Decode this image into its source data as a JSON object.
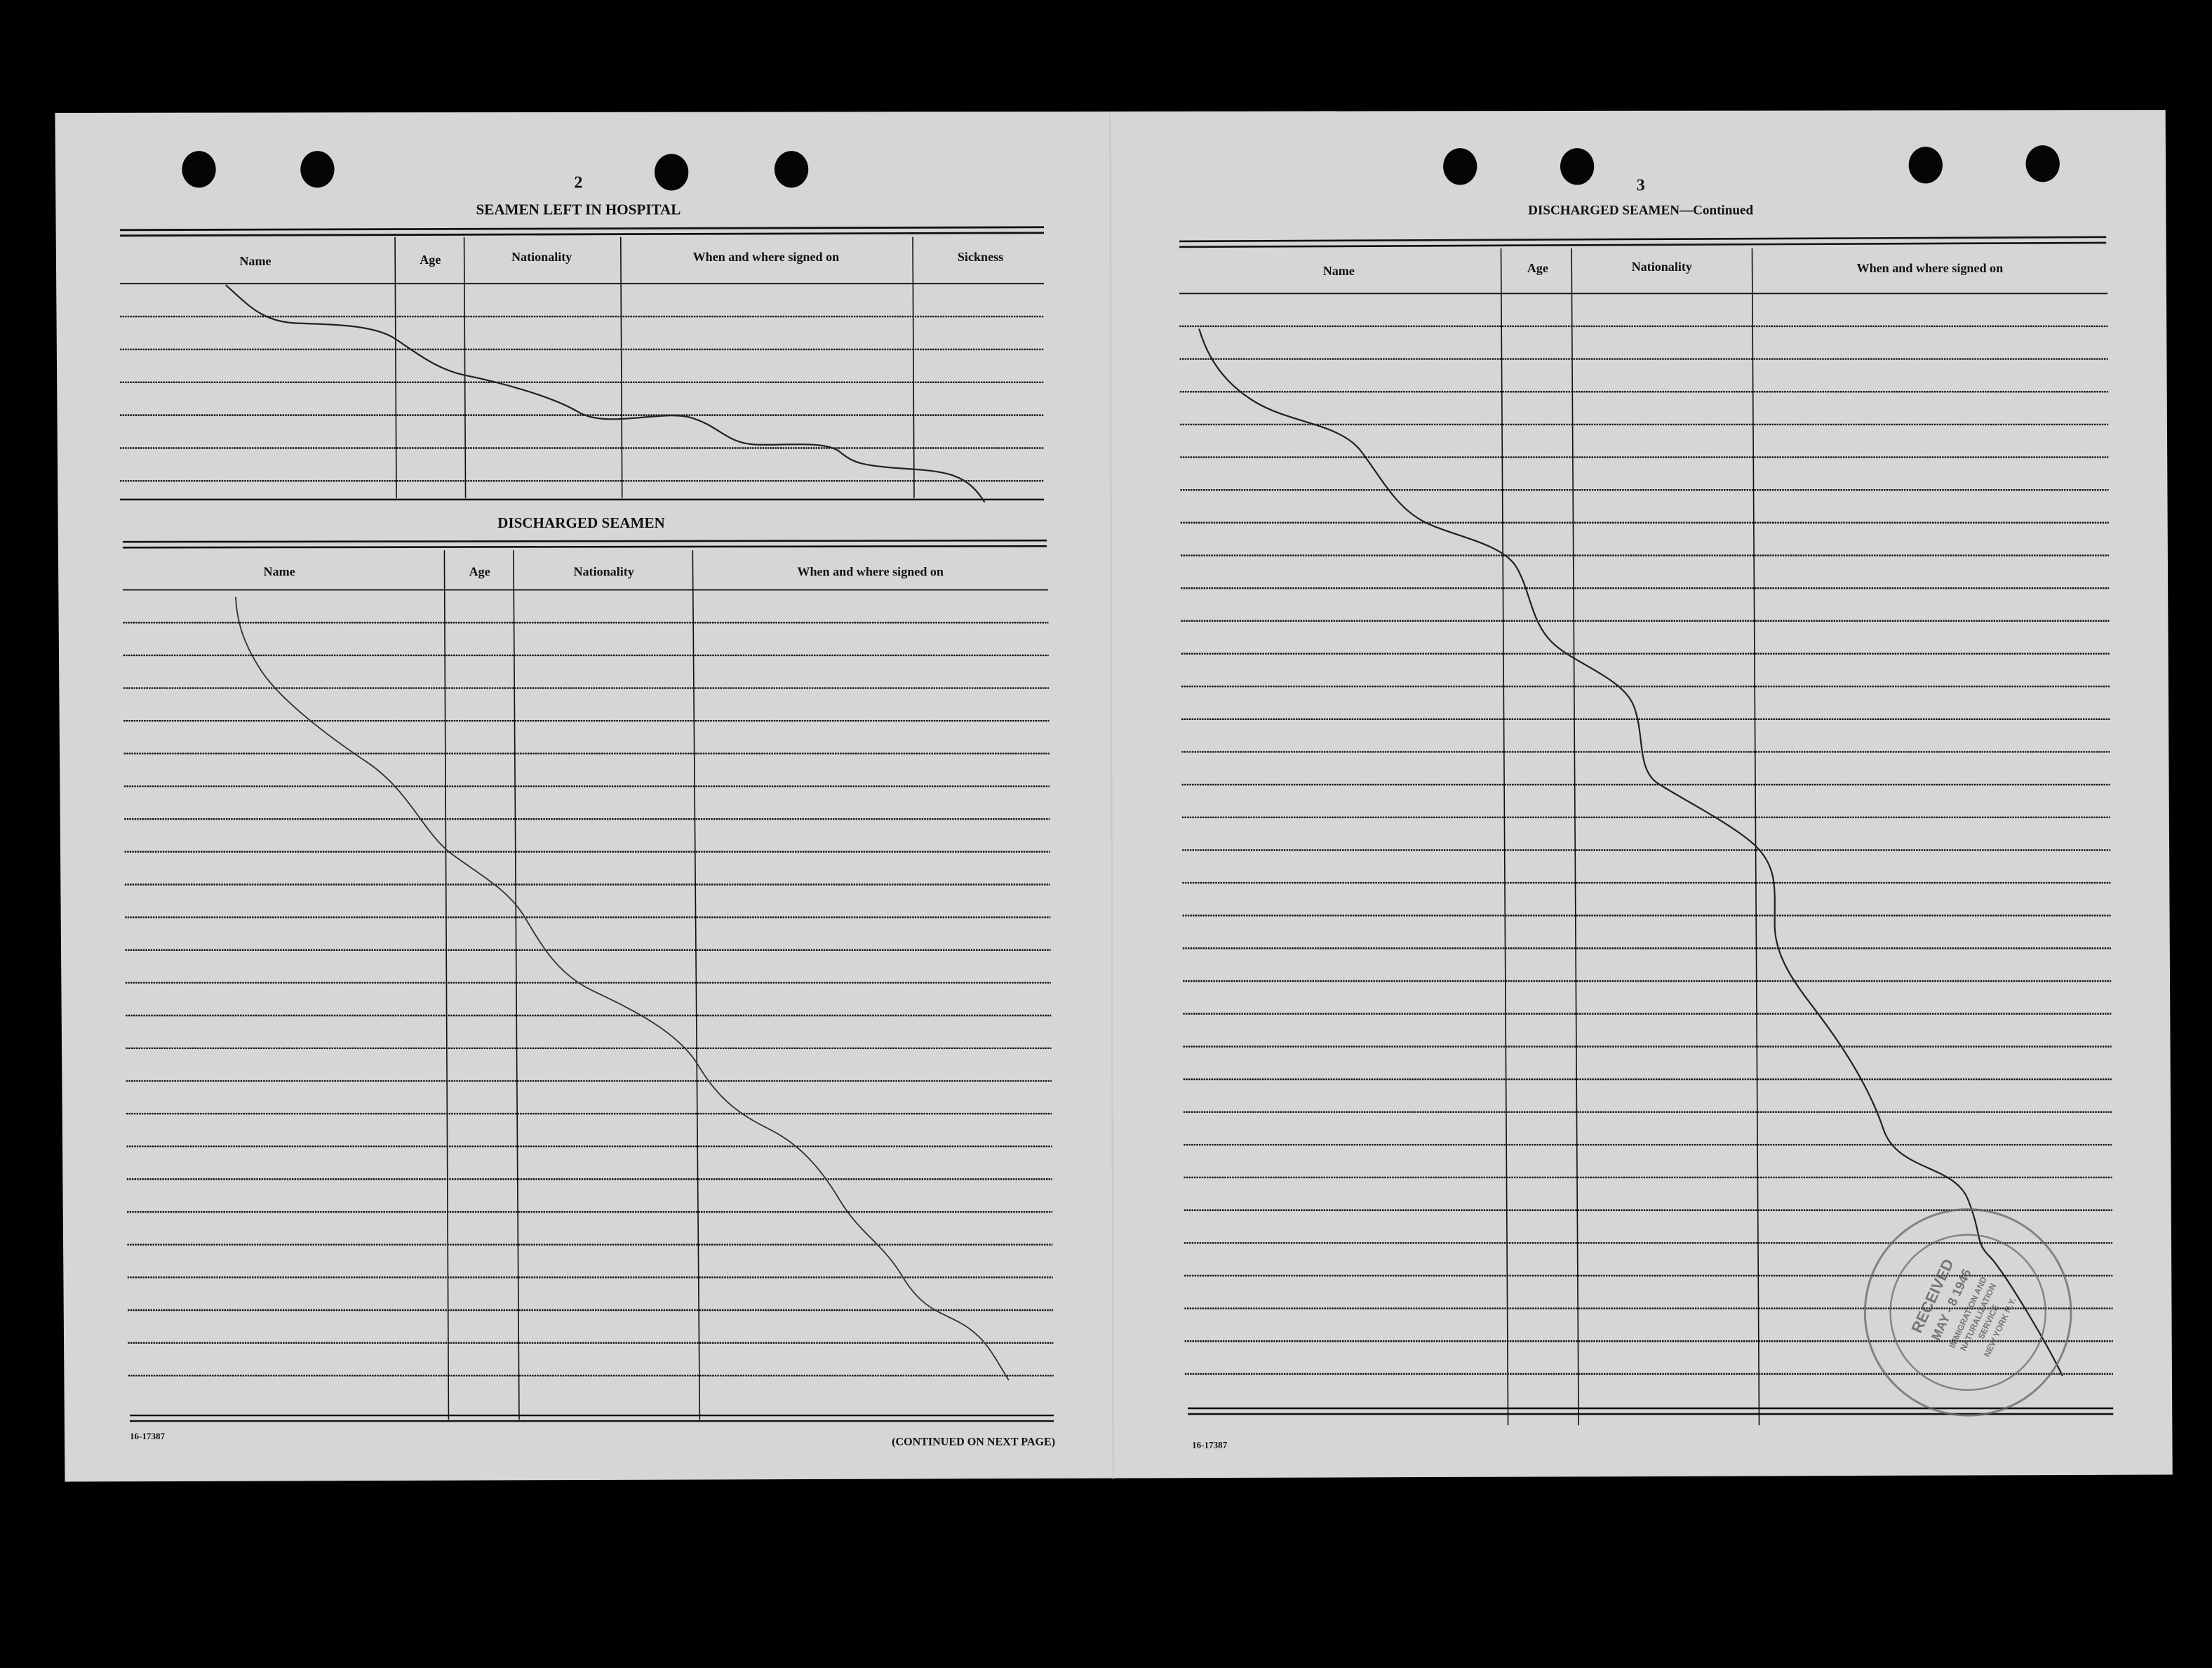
{
  "left_page": {
    "page_number": "2",
    "hospital_section": {
      "title": "SEAMEN LEFT IN HOSPITAL",
      "columns": [
        "Name",
        "Age",
        "Nationality",
        "When and where signed on",
        "Sickness"
      ]
    },
    "discharged_section": {
      "title": "DISCHARGED SEAMEN",
      "columns": [
        "Name",
        "Age",
        "Nationality",
        "When and where signed on"
      ]
    },
    "form_number": "16-17387",
    "continued_note": "(CONTINUED ON NEXT PAGE)"
  },
  "right_page": {
    "page_number": "3",
    "title": "DISCHARGED SEAMEN—Continued",
    "columns": [
      "Name",
      "Age",
      "Nationality",
      "When and where signed on"
    ],
    "form_number": "16-17387"
  },
  "stamp": {
    "status": "RECEIVED",
    "date": "MAY - 8 1946",
    "agency_line1": "IMMIGRATION AND",
    "agency_line2": "NATURALIZATION",
    "agency_line3": "SERVICE",
    "location": "NEW YORK N.Y."
  },
  "colors": {
    "paper": "#d6d6d6",
    "ink": "#111111",
    "stamp": "#666666",
    "background": "#000000"
  }
}
